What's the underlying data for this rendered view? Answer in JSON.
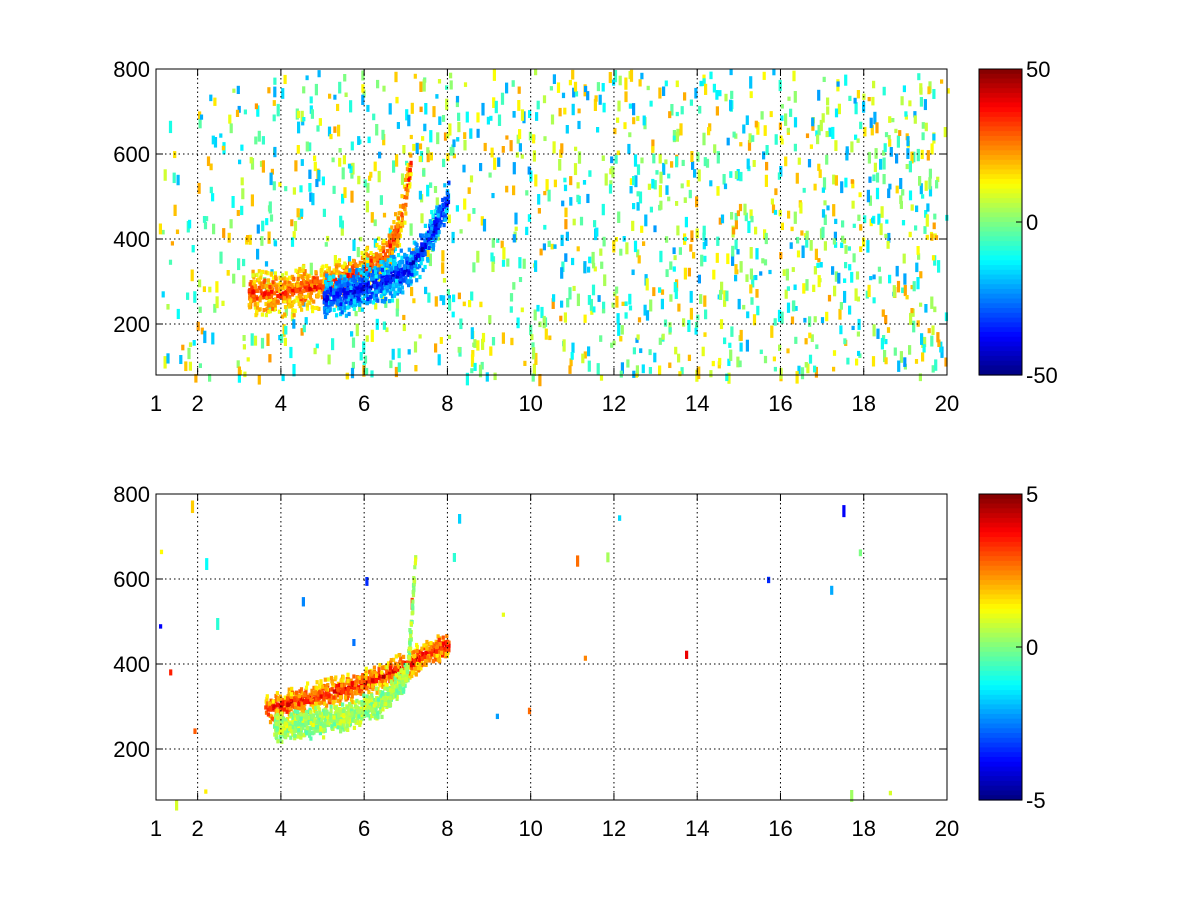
{
  "chart_data": [
    {
      "type": "heatmap",
      "title": "",
      "xlabel": "",
      "ylabel": "",
      "xlim": [
        1,
        20
      ],
      "ylim": [
        80,
        800
      ],
      "x_scale": "linear",
      "grid": true,
      "x_ticks": [
        1,
        2,
        4,
        6,
        8,
        10,
        12,
        14,
        16,
        18,
        20
      ],
      "y_ticks": [
        200,
        400,
        600,
        800
      ],
      "colorbar": {
        "colormap": "jet",
        "range": [
          -50,
          50
        ],
        "tick_labels": [
          "50",
          "0",
          "-50"
        ],
        "tick_values": [
          50,
          0,
          -50
        ]
      },
      "features": [
        {
          "name": "",
          "kind": "curved band",
          "points": [
            [
              3.2,
              280
            ],
            [
              4.0,
              275
            ],
            [
              5.0,
              295
            ],
            [
              6.0,
              330
            ],
            [
              6.5,
              370
            ],
            [
              6.8,
              430
            ],
            [
              7.0,
              520
            ],
            [
              7.1,
              600
            ]
          ],
          "value": 35
        },
        {
          "name": "",
          "kind": "curved band",
          "points": [
            [
              5.0,
              265
            ],
            [
              6.0,
              290
            ],
            [
              7.0,
              330
            ],
            [
              7.5,
              400
            ],
            [
              7.8,
              460
            ],
            [
              8.0,
              500
            ]
          ],
          "value": -40
        }
      ],
      "background": "sparse speckle of values near 0 across x = 1–20, denser below x ≈ 10"
    },
    {
      "type": "heatmap",
      "title": "",
      "xlabel": "",
      "ylabel": "",
      "xlim": [
        1,
        20
      ],
      "ylim": [
        80,
        800
      ],
      "x_scale": "linear",
      "grid": true,
      "x_ticks": [
        1,
        2,
        4,
        6,
        8,
        10,
        12,
        14,
        16,
        18,
        20
      ],
      "y_ticks": [
        200,
        400,
        600,
        800
      ],
      "colorbar": {
        "colormap": "jet",
        "range": [
          -5,
          5
        ],
        "tick_labels": [
          "5",
          "0",
          "-5"
        ],
        "tick_values": [
          5,
          0,
          -5
        ]
      },
      "features": [
        {
          "name": "",
          "kind": "curved band",
          "points": [
            [
              3.6,
              300
            ],
            [
              4.5,
              320
            ],
            [
              5.5,
              345
            ],
            [
              6.3,
              370
            ],
            [
              7.0,
              400
            ],
            [
              7.5,
              430
            ],
            [
              8.0,
              450
            ]
          ],
          "value": 4
        },
        {
          "name": "",
          "kind": "curved band",
          "points": [
            [
              3.8,
              255
            ],
            [
              4.5,
              260
            ],
            [
              5.5,
              280
            ],
            [
              6.5,
              320
            ],
            [
              7.0,
              380
            ],
            [
              7.1,
              500
            ],
            [
              7.2,
              650
            ]
          ],
          "value": 0.5
        }
      ],
      "background": "mostly empty (no data) outside the curved bands"
    }
  ]
}
